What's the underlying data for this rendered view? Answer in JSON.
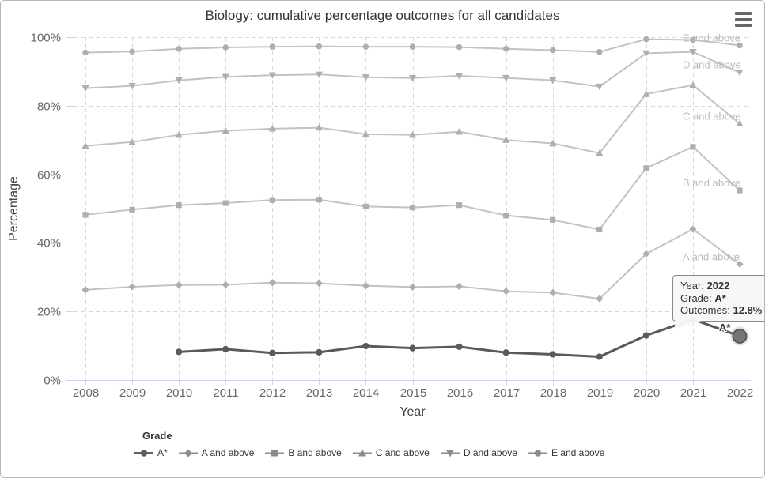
{
  "header": {
    "title": "Biology: cumulative percentage outcomes for all candidates",
    "menu_icon": "hamburger-context-menu"
  },
  "chart_data": {
    "type": "line",
    "title": "Biology: cumulative percentage outcomes for all candidates",
    "xlabel": "Year",
    "ylabel": "Percentage",
    "x": [
      2008,
      2009,
      2010,
      2011,
      2012,
      2013,
      2014,
      2015,
      2016,
      2017,
      2018,
      2019,
      2020,
      2021,
      2022
    ],
    "ylim": [
      0,
      100
    ],
    "ytick_labels": [
      "0%",
      "20%",
      "40%",
      "60%",
      "80%",
      "100%"
    ],
    "grid": true,
    "legend_position": "bottom",
    "legend_title": "Grade",
    "series": [
      {
        "id": "a-star",
        "name": "A*",
        "marker": "circle",
        "emphasis": true,
        "values": [
          null,
          null,
          8.2,
          9.0,
          7.9,
          8.1,
          9.9,
          9.3,
          9.7,
          8.0,
          7.5,
          6.8,
          13.0,
          17.7,
          12.8
        ]
      },
      {
        "id": "a-and-above",
        "name": "A and above",
        "marker": "diamond",
        "emphasis": false,
        "values": [
          26.3,
          27.2,
          27.7,
          27.8,
          28.4,
          28.2,
          27.5,
          27.1,
          27.3,
          25.9,
          25.5,
          23.7,
          36.8,
          44.0,
          33.8
        ]
      },
      {
        "id": "b-and-above",
        "name": "B and above",
        "marker": "square",
        "emphasis": false,
        "values": [
          48.2,
          49.7,
          51.0,
          51.6,
          52.5,
          52.6,
          50.6,
          50.3,
          51.0,
          48.0,
          46.7,
          43.9,
          61.8,
          68.0,
          55.3
        ]
      },
      {
        "id": "c-and-above",
        "name": "C and above",
        "marker": "triangle-up",
        "emphasis": false,
        "values": [
          68.3,
          69.4,
          71.5,
          72.7,
          73.3,
          73.6,
          71.7,
          71.5,
          72.4,
          70.0,
          69.0,
          66.2,
          83.4,
          86.0,
          74.8
        ]
      },
      {
        "id": "d-and-above",
        "name": "D and above",
        "marker": "triangle-down",
        "emphasis": false,
        "values": [
          85.1,
          85.8,
          87.4,
          88.4,
          88.9,
          89.1,
          88.3,
          88.1,
          88.7,
          88.1,
          87.4,
          85.6,
          95.3,
          95.7,
          89.7
        ]
      },
      {
        "id": "e-and-above",
        "name": "E and above",
        "marker": "circle",
        "emphasis": false,
        "values": [
          95.5,
          95.8,
          96.6,
          97.0,
          97.2,
          97.3,
          97.2,
          97.2,
          97.1,
          96.6,
          96.2,
          95.7,
          99.4,
          99.2,
          97.6
        ]
      }
    ],
    "hovered_point": {
      "series": "A*",
      "year": "2022",
      "value": "12.8%"
    }
  },
  "tooltip": {
    "year_label": "Year:",
    "year": "2022",
    "grade_label": "Grade:",
    "grade": "A*",
    "outcomes_label": "Outcomes:",
    "outcomes": "12.8%"
  },
  "point_label": "A*",
  "colors": {
    "light_line": "#c2c2c2",
    "light_marker": "#aeaeae",
    "dark_line": "#5a5a5a",
    "hover_fill": "#757575",
    "grid": "#d9d9d9",
    "axis_line": "#ccd6eb",
    "tick_text": "#666666",
    "axis_title_text": "#444444",
    "series_label_text": "#bcbcbc",
    "legend_symbol": "#8c8c8c",
    "legend_symbol_dark": "#5f5f5f"
  }
}
